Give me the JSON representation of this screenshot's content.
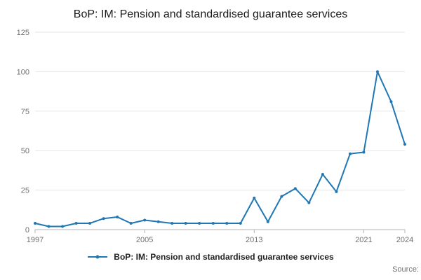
{
  "chart_data": {
    "type": "line",
    "title": "BoP: IM: Pension and standardised guarantee services",
    "x": [
      1997,
      1998,
      1999,
      2000,
      2001,
      2002,
      2003,
      2004,
      2005,
      2006,
      2007,
      2008,
      2009,
      2010,
      2011,
      2012,
      2013,
      2014,
      2015,
      2016,
      2017,
      2018,
      2019,
      2020,
      2021,
      2022,
      2023,
      2024
    ],
    "series": [
      {
        "name": "BoP: IM: Pension and standardised guarantee services",
        "values": [
          4,
          2,
          2,
          4,
          4,
          7,
          8,
          4,
          6,
          5,
          4,
          4,
          4,
          4,
          4,
          4,
          20,
          5,
          21,
          26,
          17,
          35,
          24,
          48,
          49,
          100,
          81,
          54
        ]
      }
    ],
    "xlabel": "",
    "ylabel": "",
    "ylim": [
      0,
      125
    ],
    "yticks": [
      0,
      25,
      50,
      75,
      100,
      125
    ],
    "xticks": [
      1997,
      2005,
      2013,
      2021,
      2024
    ],
    "grid": "horizontal",
    "legend_position": "bottom",
    "colors": {
      "line": "#1f77b4",
      "grid": "#e6e6e6",
      "axis": "#b3b3b3",
      "tick_text": "#707070"
    }
  },
  "footer": {
    "source": "Source:"
  }
}
